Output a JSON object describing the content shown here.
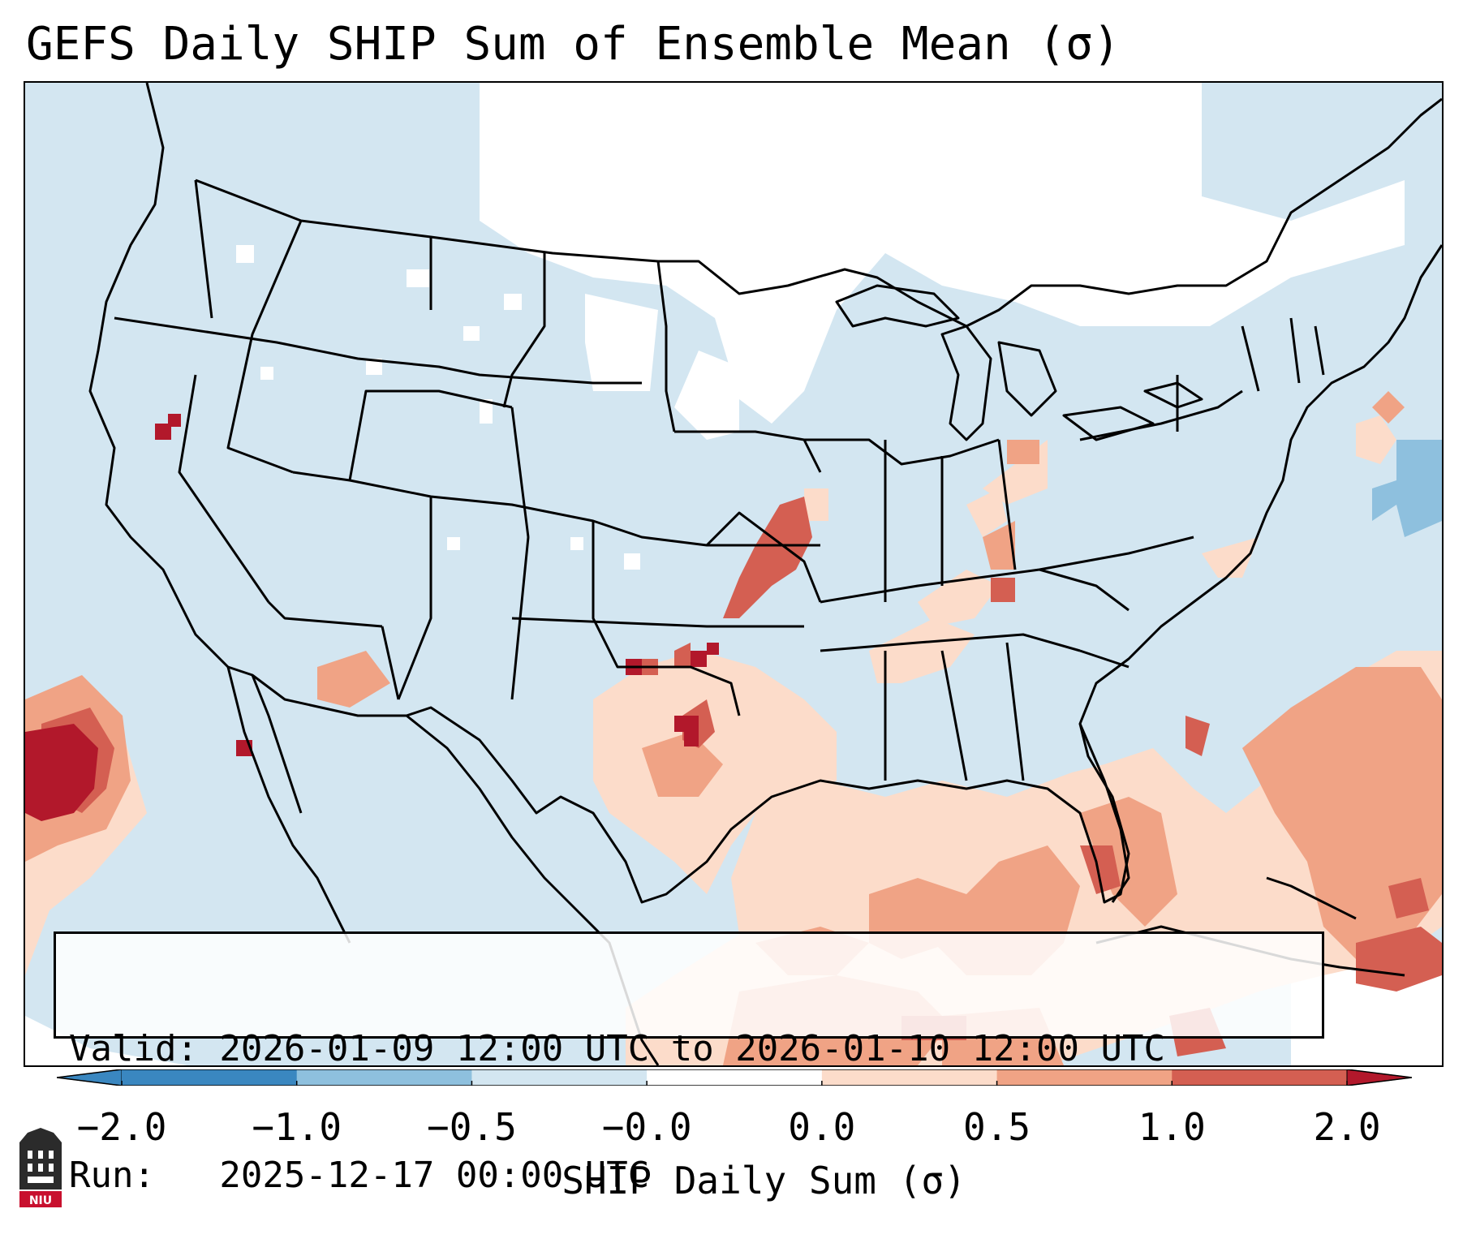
{
  "title": "GEFS Daily SHIP Sum of Ensemble Mean (σ)",
  "info": {
    "valid_line": "Valid: 2026-01-09 12:00 UTC to 2026-01-10 12:00 UTC",
    "run_line": "Run:   2025-12-17 00:00 UTC"
  },
  "colorbar": {
    "label": "SHIP Daily Sum (σ)",
    "ticks": [
      "−2.0",
      "−1.0",
      "−0.5",
      "−0.0",
      "0.0",
      "0.5",
      "1.0",
      "2.0"
    ],
    "colors": [
      "#3a87c0",
      "#8ec0de",
      "#d3e6f1",
      "#ffffff",
      "#fcdcca",
      "#f0a385",
      "#d45f52",
      "#b2182b"
    ],
    "extend": "both"
  },
  "map": {
    "region": "Contiguous United States",
    "background_color": "#d3e6f1",
    "highlights": [
      {
        "area": "Northern Plains / Upper Midwest",
        "level": "-0.0 to 0.0"
      },
      {
        "area": "Gulf of Mexico / Southeast coast",
        "level": "0.0 to 1.0"
      },
      {
        "area": "Kansas–Oklahoma line",
        "level": "1.0 to 2.0"
      },
      {
        "area": "West Texas",
        "level": "0.5 to 2.0"
      },
      {
        "area": "Eastern Pacific off Baja",
        "level": "1.0 to 2.0"
      },
      {
        "area": "Western Atlantic",
        "level": "0.5 to 1.0"
      }
    ]
  },
  "logo": {
    "text": "NIU"
  }
}
